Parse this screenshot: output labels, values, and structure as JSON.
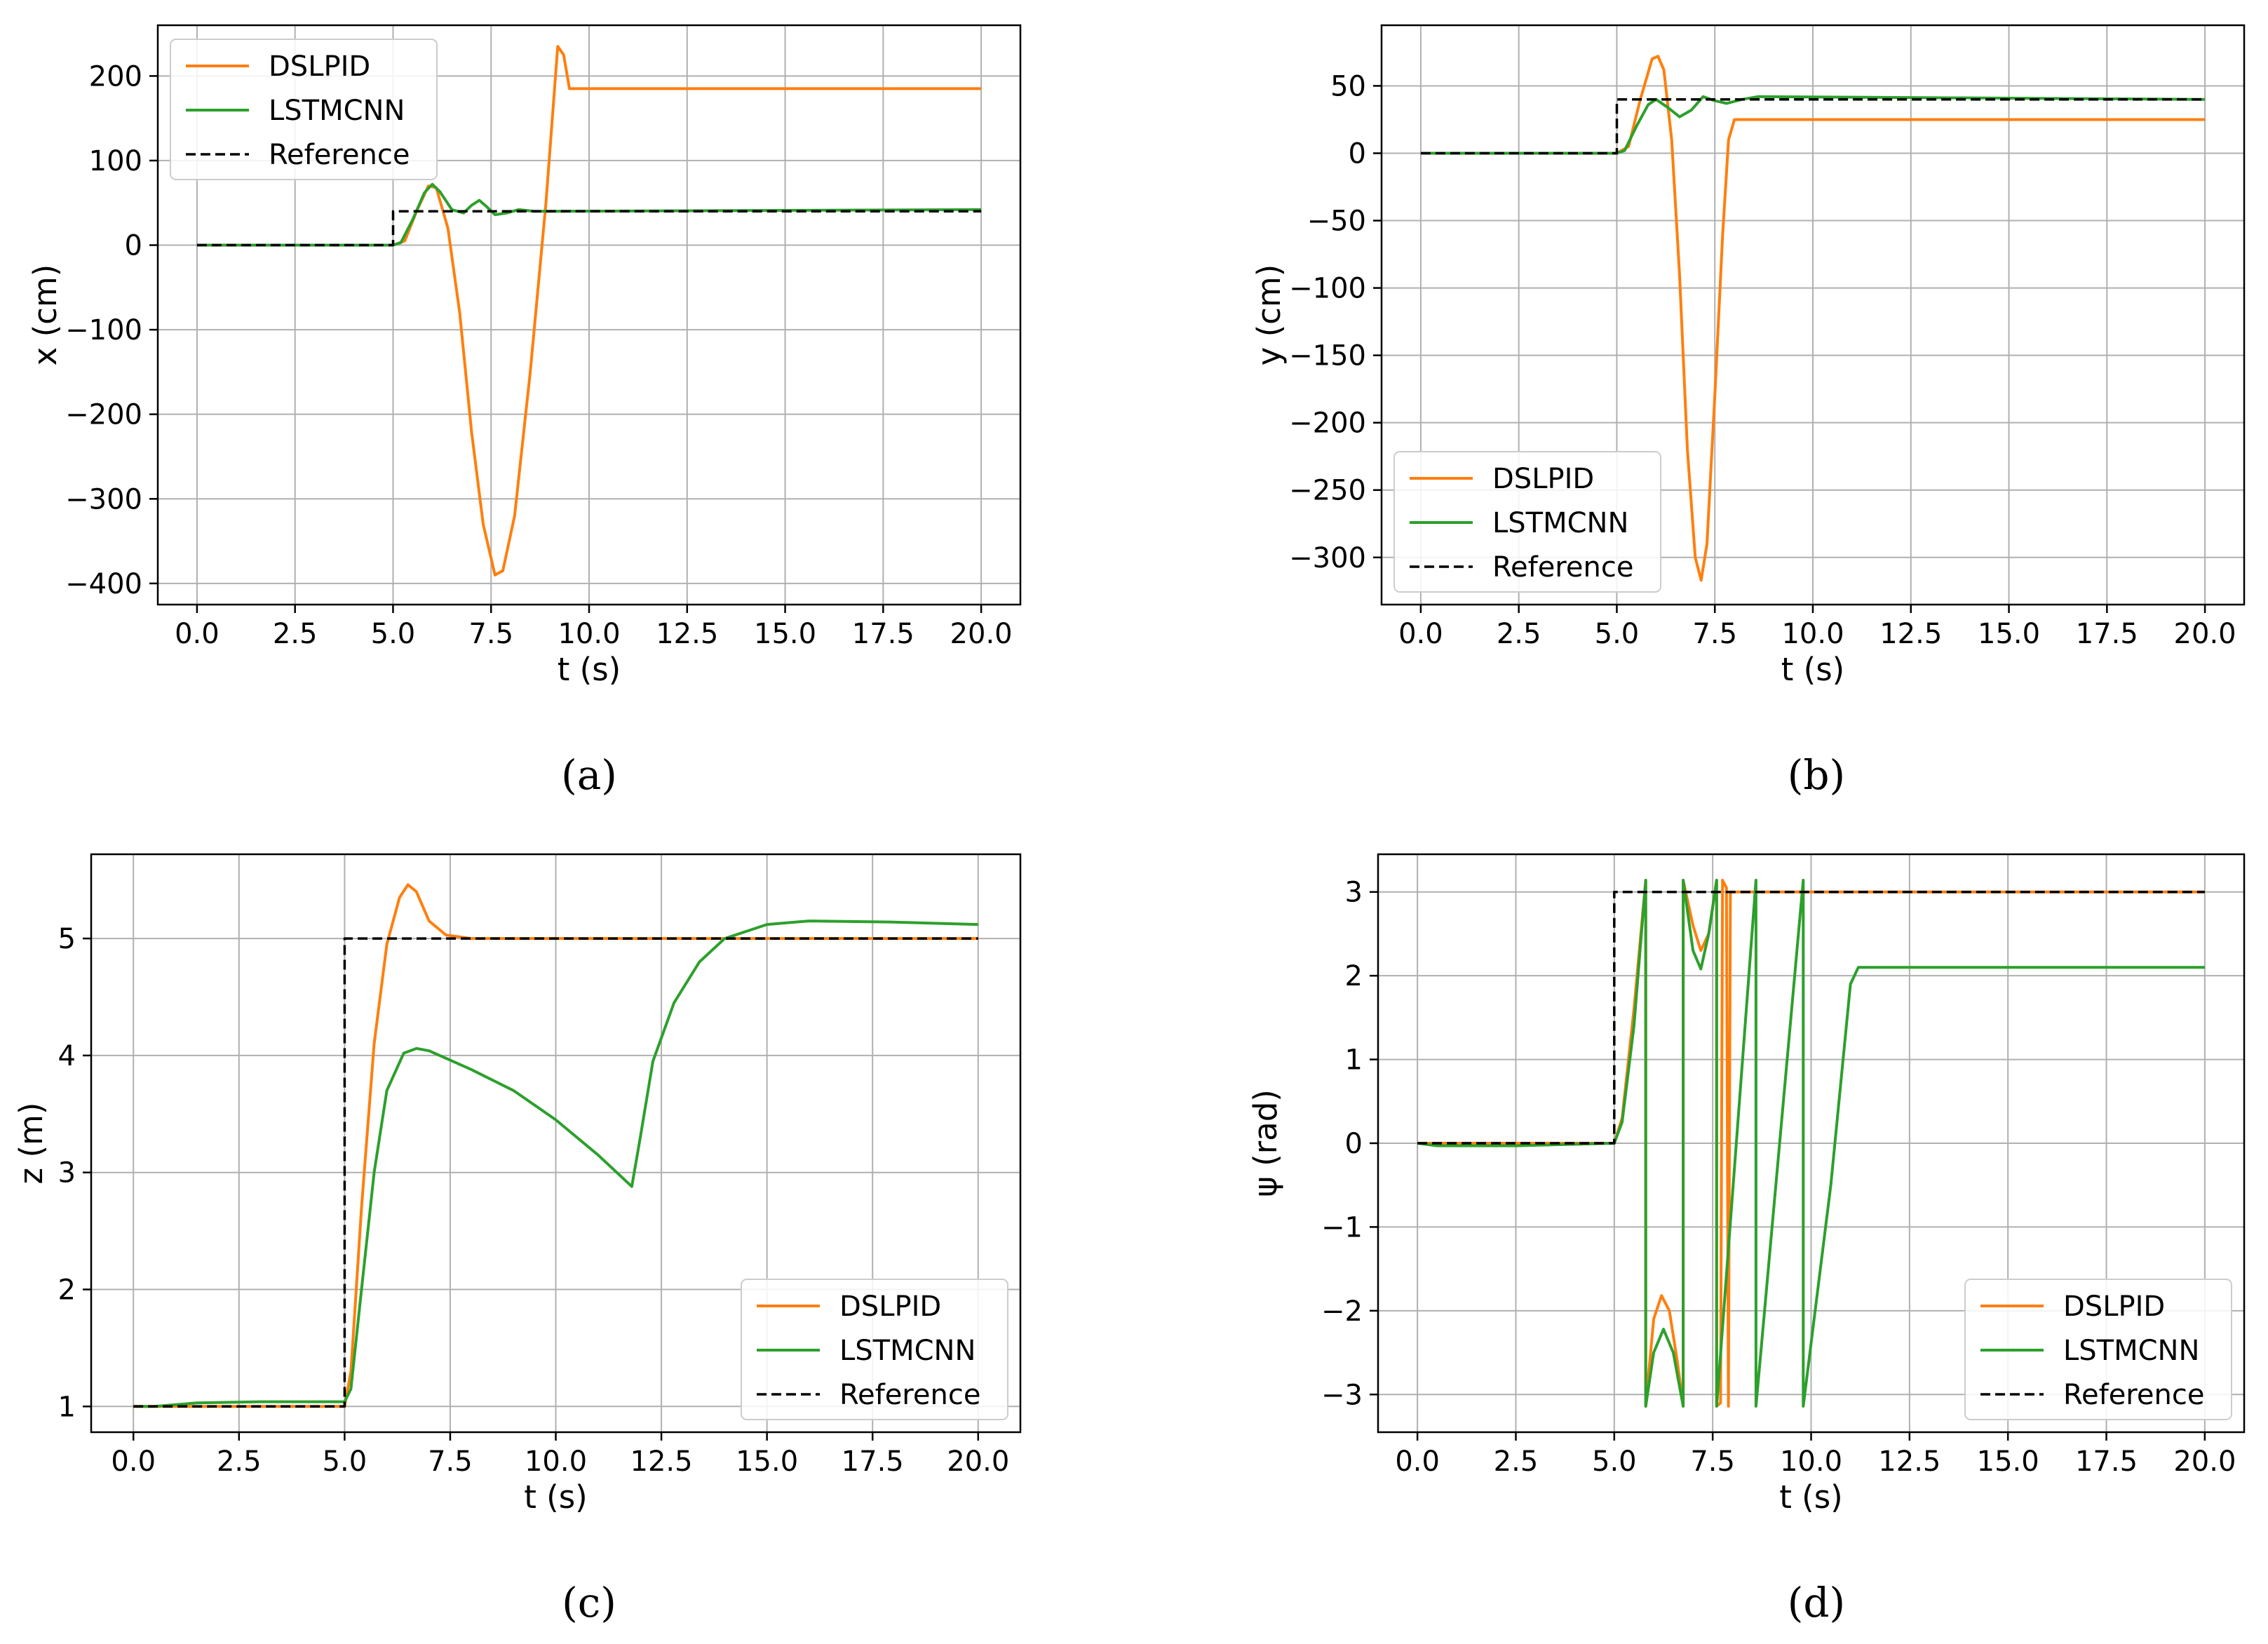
{
  "colors": {
    "dslpid": "#ff7f0e",
    "lstmcnn": "#2ca02c",
    "reference": "#000000"
  },
  "chart_data": [
    {
      "id": "a",
      "type": "line",
      "caption": "(a)",
      "xlabel": "t (s)",
      "ylabel": "x (cm)",
      "xlim": [
        -1.0,
        21.0
      ],
      "ylim": [
        -425,
        260
      ],
      "xticks": [
        0,
        2.5,
        5,
        7.5,
        10,
        12.5,
        15,
        17.5,
        20
      ],
      "xtick_labels": [
        "0.0",
        "2.5",
        "5.0",
        "7.5",
        "10.0",
        "12.5",
        "15.0",
        "17.5",
        "20.0"
      ],
      "yticks": [
        -400,
        -300,
        -200,
        -100,
        0,
        100,
        200
      ],
      "ytick_labels": [
        "−400",
        "−300",
        "−200",
        "−100",
        "0",
        "100",
        "200"
      ],
      "legend_location": "upper-left",
      "legend": [
        "DSLPID",
        "LSTMCNN",
        "Reference"
      ],
      "series": [
        {
          "name": "DSLPID",
          "color_key": "dslpid",
          "dashed": false,
          "points": [
            [
              0,
              0
            ],
            [
              5,
              0
            ],
            [
              5.3,
              5
            ],
            [
              5.6,
              40
            ],
            [
              5.9,
              70
            ],
            [
              6.1,
              68
            ],
            [
              6.4,
              20
            ],
            [
              6.7,
              -80
            ],
            [
              7.0,
              -220
            ],
            [
              7.3,
              -330
            ],
            [
              7.6,
              -390
            ],
            [
              7.8,
              -385
            ],
            [
              8.1,
              -320
            ],
            [
              8.5,
              -150
            ],
            [
              8.9,
              50
            ],
            [
              9.2,
              235
            ],
            [
              9.35,
              225
            ],
            [
              9.5,
              185
            ],
            [
              20,
              185
            ]
          ]
        },
        {
          "name": "LSTMCNN",
          "color_key": "lstmcnn",
          "dashed": false,
          "points": [
            [
              0,
              0
            ],
            [
              5,
              0
            ],
            [
              5.2,
              3
            ],
            [
              5.5,
              30
            ],
            [
              5.8,
              62
            ],
            [
              6.0,
              72
            ],
            [
              6.2,
              63
            ],
            [
              6.5,
              42
            ],
            [
              6.8,
              38
            ],
            [
              7.0,
              47
            ],
            [
              7.2,
              53
            ],
            [
              7.4,
              45
            ],
            [
              7.6,
              36
            ],
            [
              7.9,
              38
            ],
            [
              8.2,
              42
            ],
            [
              8.6,
              40
            ],
            [
              20,
              42
            ]
          ]
        },
        {
          "name": "Reference",
          "color_key": "reference",
          "dashed": true,
          "points": [
            [
              0,
              0
            ],
            [
              5,
              0
            ],
            [
              5,
              40
            ],
            [
              20,
              40
            ]
          ]
        }
      ]
    },
    {
      "id": "b",
      "type": "line",
      "caption": "(b)",
      "xlabel": "t (s)",
      "ylabel": "y (cm)",
      "xlim": [
        -1.0,
        21.0
      ],
      "ylim": [
        -335,
        95
      ],
      "xticks": [
        0,
        2.5,
        5,
        7.5,
        10,
        12.5,
        15,
        17.5,
        20
      ],
      "xtick_labels": [
        "0.0",
        "2.5",
        "5.0",
        "7.5",
        "10.0",
        "12.5",
        "15.0",
        "17.5",
        "20.0"
      ],
      "yticks": [
        -300,
        -250,
        -200,
        -150,
        -100,
        -50,
        0,
        50
      ],
      "ytick_labels": [
        "−300",
        "−250",
        "−200",
        "−150",
        "−100",
        "−50",
        "0",
        "50"
      ],
      "legend_location": "lower-left",
      "legend": [
        "DSLPID",
        "LSTMCNN",
        "Reference"
      ],
      "series": [
        {
          "name": "DSLPID",
          "color_key": "dslpid",
          "dashed": false,
          "points": [
            [
              0,
              0
            ],
            [
              5,
              0
            ],
            [
              5.3,
              5
            ],
            [
              5.6,
              40
            ],
            [
              5.9,
              70
            ],
            [
              6.05,
              72
            ],
            [
              6.2,
              62
            ],
            [
              6.4,
              10
            ],
            [
              6.6,
              -90
            ],
            [
              6.8,
              -220
            ],
            [
              7.0,
              -300
            ],
            [
              7.15,
              -317
            ],
            [
              7.3,
              -290
            ],
            [
              7.5,
              -180
            ],
            [
              7.7,
              -60
            ],
            [
              7.85,
              10
            ],
            [
              8.0,
              25
            ],
            [
              20,
              25
            ]
          ]
        },
        {
          "name": "LSTMCNN",
          "color_key": "lstmcnn",
          "dashed": false,
          "points": [
            [
              0,
              0
            ],
            [
              5,
              0
            ],
            [
              5.2,
              2
            ],
            [
              5.5,
              20
            ],
            [
              5.8,
              36
            ],
            [
              6.0,
              40
            ],
            [
              6.3,
              34
            ],
            [
              6.6,
              27
            ],
            [
              6.9,
              32
            ],
            [
              7.2,
              42
            ],
            [
              7.5,
              39
            ],
            [
              7.8,
              37
            ],
            [
              8.2,
              40
            ],
            [
              8.6,
              42
            ],
            [
              20,
              40
            ]
          ]
        },
        {
          "name": "Reference",
          "color_key": "reference",
          "dashed": true,
          "points": [
            [
              0,
              0
            ],
            [
              5,
              0
            ],
            [
              5,
              40
            ],
            [
              20,
              40
            ]
          ]
        }
      ]
    },
    {
      "id": "c",
      "type": "line",
      "caption": "(c)",
      "xlabel": "t (s)",
      "ylabel": "z (m)",
      "xlim": [
        -1.0,
        21.0
      ],
      "ylim": [
        0.78,
        5.72
      ],
      "xticks": [
        0,
        2.5,
        5,
        7.5,
        10,
        12.5,
        15,
        17.5,
        20
      ],
      "xtick_labels": [
        "0.0",
        "2.5",
        "5.0",
        "7.5",
        "10.0",
        "12.5",
        "15.0",
        "17.5",
        "20.0"
      ],
      "yticks": [
        1,
        2,
        3,
        4,
        5
      ],
      "ytick_labels": [
        "1",
        "2",
        "3",
        "4",
        "5"
      ],
      "legend_location": "lower-right",
      "legend": [
        "DSLPID",
        "LSTMCNN",
        "Reference"
      ],
      "series": [
        {
          "name": "DSLPID",
          "color_key": "dslpid",
          "dashed": false,
          "points": [
            [
              0,
              1
            ],
            [
              5,
              1
            ],
            [
              5.15,
              1.3
            ],
            [
              5.4,
              2.7
            ],
            [
              5.7,
              4.1
            ],
            [
              6.0,
              4.95
            ],
            [
              6.3,
              5.35
            ],
            [
              6.5,
              5.46
            ],
            [
              6.7,
              5.4
            ],
            [
              7.0,
              5.15
            ],
            [
              7.4,
              5.03
            ],
            [
              8.0,
              5.0
            ],
            [
              20,
              5.0
            ]
          ]
        },
        {
          "name": "LSTMCNN",
          "color_key": "lstmcnn",
          "dashed": false,
          "points": [
            [
              0,
              1
            ],
            [
              0.5,
              1.0
            ],
            [
              1.5,
              1.03
            ],
            [
              3,
              1.04
            ],
            [
              5,
              1.04
            ],
            [
              5.15,
              1.15
            ],
            [
              5.4,
              2.0
            ],
            [
              5.7,
              3.0
            ],
            [
              6.0,
              3.7
            ],
            [
              6.4,
              4.02
            ],
            [
              6.7,
              4.06
            ],
            [
              7.0,
              4.04
            ],
            [
              8.0,
              3.88
            ],
            [
              9.0,
              3.7
            ],
            [
              10.0,
              3.45
            ],
            [
              11.0,
              3.15
            ],
            [
              11.8,
              2.88
            ],
            [
              12.0,
              3.3
            ],
            [
              12.3,
              3.95
            ],
            [
              12.8,
              4.45
            ],
            [
              13.4,
              4.8
            ],
            [
              14.0,
              5.0
            ],
            [
              15.0,
              5.12
            ],
            [
              16.0,
              5.15
            ],
            [
              18.0,
              5.14
            ],
            [
              20.0,
              5.12
            ]
          ]
        },
        {
          "name": "Reference",
          "color_key": "reference",
          "dashed": true,
          "points": [
            [
              0,
              1
            ],
            [
              5,
              1
            ],
            [
              5,
              5
            ],
            [
              20,
              5
            ]
          ]
        }
      ]
    },
    {
      "id": "d",
      "type": "line",
      "caption": "(d)",
      "xlabel": "t (s)",
      "ylabel": "ψ (rad)",
      "xlim": [
        -1.0,
        21.0
      ],
      "ylim": [
        -3.45,
        3.45
      ],
      "xticks": [
        0,
        2.5,
        5,
        7.5,
        10,
        12.5,
        15,
        17.5,
        20
      ],
      "xtick_labels": [
        "0.0",
        "2.5",
        "5.0",
        "7.5",
        "10.0",
        "12.5",
        "15.0",
        "17.5",
        "20.0"
      ],
      "yticks": [
        -3,
        -2,
        -1,
        0,
        1,
        2,
        3
      ],
      "ytick_labels": [
        "−3",
        "−2",
        "−1",
        "0",
        "1",
        "2",
        "3"
      ],
      "legend_location": "lower-right",
      "legend": [
        "DSLPID",
        "LSTMCNN",
        "Reference"
      ],
      "series": [
        {
          "name": "DSLPID",
          "color_key": "dslpid",
          "dashed": false,
          "points": [
            [
              0,
              0
            ],
            [
              5,
              0
            ],
            [
              5.2,
              0.3
            ],
            [
              5.5,
              1.6
            ],
            [
              5.8,
              3.14
            ],
            [
              5.8,
              -3.14
            ],
            [
              6.0,
              -2.1
            ],
            [
              6.2,
              -1.82
            ],
            [
              6.4,
              -2.0
            ],
            [
              6.6,
              -2.6
            ],
            [
              6.75,
              -3.14
            ],
            [
              6.75,
              3.14
            ],
            [
              7.0,
              2.6
            ],
            [
              7.2,
              2.3
            ],
            [
              7.4,
              2.5
            ],
            [
              7.6,
              3.14
            ],
            [
              7.6,
              -3.14
            ],
            [
              7.7,
              -3.1
            ],
            [
              7.75,
              3.14
            ],
            [
              7.85,
              3.05
            ],
            [
              7.9,
              -3.14
            ],
            [
              7.95,
              3.0
            ],
            [
              20,
              3.0
            ]
          ]
        },
        {
          "name": "LSTMCNN",
          "color_key": "lstmcnn",
          "dashed": false,
          "points": [
            [
              0,
              0
            ],
            [
              0.5,
              -0.03
            ],
            [
              2.5,
              -0.03
            ],
            [
              5,
              0
            ],
            [
              5.2,
              0.25
            ],
            [
              5.5,
              1.4
            ],
            [
              5.8,
              3.14
            ],
            [
              5.8,
              -3.14
            ],
            [
              6.0,
              -2.5
            ],
            [
              6.25,
              -2.22
            ],
            [
              6.5,
              -2.5
            ],
            [
              6.75,
              -3.14
            ],
            [
              6.75,
              3.14
            ],
            [
              7.0,
              2.3
            ],
            [
              7.2,
              2.08
            ],
            [
              7.4,
              2.5
            ],
            [
              7.6,
              3.14
            ],
            [
              7.6,
              -3.14
            ],
            [
              8.6,
              3.14
            ],
            [
              8.6,
              -3.14
            ],
            [
              9.8,
              3.14
            ],
            [
              9.8,
              -3.14
            ],
            [
              10.5,
              -0.5
            ],
            [
              11.0,
              1.9
            ],
            [
              11.2,
              2.1
            ],
            [
              20,
              2.1
            ]
          ]
        },
        {
          "name": "Reference",
          "color_key": "reference",
          "dashed": true,
          "points": [
            [
              0,
              0
            ],
            [
              5,
              0
            ],
            [
              5,
              3
            ],
            [
              20,
              3
            ]
          ]
        }
      ]
    }
  ]
}
